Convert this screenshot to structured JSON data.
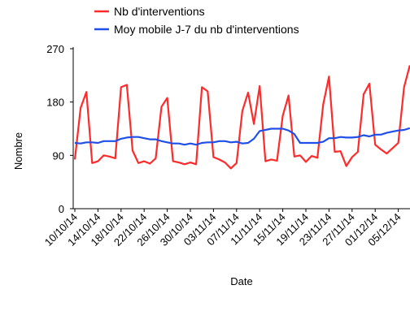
{
  "chart_data": {
    "type": "line",
    "xlabel": "Date",
    "ylabel": "Nombre",
    "ylim": [
      0,
      270
    ],
    "yticks": [
      0,
      90,
      180,
      270
    ],
    "grid": false,
    "legend_position": "top",
    "xticks": [
      "10/10/14",
      "14/10/14",
      "18/10/14",
      "22/10/14",
      "26/10/14",
      "30/10/14",
      "03/11/14",
      "07/11/14",
      "11/11/14",
      "15/11/14",
      "19/11/14",
      "23/11/14",
      "27/11/14",
      "01/12/14",
      "05/12/14"
    ],
    "series": [
      {
        "name": "Nb d'interventions",
        "color": "#ff2a2a",
        "values": [
          83,
          170,
          197,
          77,
          80,
          90,
          88,
          85,
          205,
          209,
          98,
          77,
          80,
          76,
          85,
          172,
          187,
          80,
          78,
          75,
          78,
          75,
          205,
          198,
          87,
          83,
          78,
          68,
          77,
          165,
          196,
          143,
          207,
          80,
          83,
          81,
          157,
          191,
          88,
          90,
          79,
          89,
          86,
          176,
          223,
          96,
          97,
          72,
          87,
          96,
          193,
          211,
          108,
          100,
          93,
          102,
          111,
          205,
          242
        ]
      },
      {
        "name": "Moy mobile J-7 du nb d'interventions",
        "color": "#1f4fe8",
        "values": [
          111,
          110,
          112,
          112,
          111,
          114,
          114,
          114,
          118,
          120,
          121,
          121,
          119,
          117,
          117,
          114,
          112,
          110,
          110,
          108,
          110,
          108,
          111,
          112,
          112,
          114,
          114,
          112,
          113,
          110,
          111,
          118,
          131,
          133,
          135,
          135,
          135,
          132,
          126,
          111,
          111,
          111,
          111,
          113,
          119,
          119,
          121,
          120,
          120,
          121,
          124,
          122,
          125,
          125,
          128,
          130,
          132,
          133,
          136
        ]
      }
    ]
  }
}
